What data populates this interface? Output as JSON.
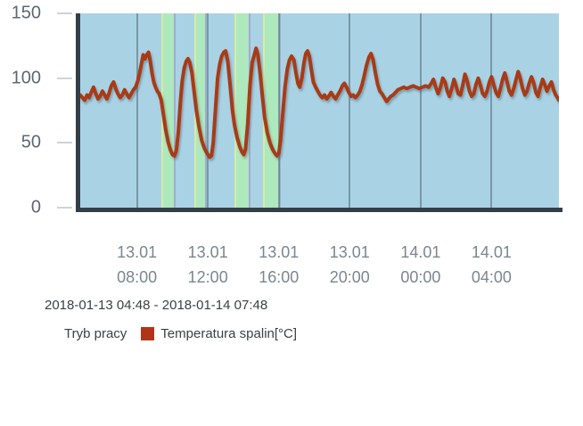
{
  "subtitle": "2018-01-13 04:48 - 2018-01-14 07:48",
  "legend": {
    "items": [
      {
        "label": "Tryb pracy",
        "swatch": null
      },
      {
        "label": "Temperatura spalin[°C]",
        "swatch": "#b23418"
      }
    ]
  },
  "colors": {
    "plot_background": "#a9d3e5",
    "mode_band_green": "#aee8bd",
    "band_edge_left": "#d8eca2",
    "band_edge_right": "#a3abd4",
    "gridline": "rgba(72,94,105,0.5)",
    "axis_bar": "#333e46",
    "tick": "#cdd4d8",
    "y_label_text": "#5d686f",
    "x_label_text": "#7b868e",
    "text_dark": "#3b4043",
    "series_line": "#a83a18"
  },
  "chart_data": {
    "type": "line",
    "title": "",
    "subtitle": "2018-01-13 04:48 - 2018-01-14 07:48",
    "xlabel": "",
    "ylabel": "Temperatura spalin [°C]",
    "x_unit": "hours since 2018-01-13 00:00",
    "xlim_hours": [
      4.8,
      31.8
    ],
    "ylim": [
      0,
      150
    ],
    "grid": "vertical-only",
    "legend_position": "bottom",
    "y_ticks": [
      {
        "value": 0,
        "label": "0"
      },
      {
        "value": 50,
        "label": "50"
      },
      {
        "value": 100,
        "label": "100"
      },
      {
        "value": 150,
        "label": "150"
      }
    ],
    "x_ticks": [
      {
        "hour": 8,
        "date": "13.01",
        "time": "08:00"
      },
      {
        "hour": 12,
        "date": "13.01",
        "time": "12:00"
      },
      {
        "hour": 16,
        "date": "13.01",
        "time": "16:00"
      },
      {
        "hour": 20,
        "date": "13.01",
        "time": "20:00"
      },
      {
        "hour": 24,
        "date": "14.01",
        "time": "00:00"
      },
      {
        "hour": 28,
        "date": "14.01",
        "time": "04:00"
      }
    ],
    "mode_bands": {
      "name": "Tryb pracy",
      "color": "#aee8bd",
      "intervals_hours": [
        [
          9.37,
          10.17
        ],
        [
          11.22,
          11.95
        ],
        [
          13.48,
          14.39
        ],
        [
          15.09,
          16.09
        ]
      ]
    },
    "series": [
      {
        "name": "Temperatura spalin[°C]",
        "color": "#a83a18",
        "unit": "°C",
        "points_hour_value": [
          [
            4.8,
            87
          ],
          [
            4.92,
            85
          ],
          [
            5.05,
            83
          ],
          [
            5.18,
            87
          ],
          [
            5.3,
            85
          ],
          [
            5.42,
            89
          ],
          [
            5.55,
            93
          ],
          [
            5.68,
            88
          ],
          [
            5.8,
            84
          ],
          [
            5.92,
            86
          ],
          [
            6.05,
            90
          ],
          [
            6.18,
            87
          ],
          [
            6.3,
            84
          ],
          [
            6.42,
            88
          ],
          [
            6.55,
            94
          ],
          [
            6.68,
            97
          ],
          [
            6.8,
            92
          ],
          [
            6.92,
            88
          ],
          [
            7.05,
            85
          ],
          [
            7.18,
            87
          ],
          [
            7.3,
            91
          ],
          [
            7.42,
            88
          ],
          [
            7.55,
            85
          ],
          [
            7.68,
            88
          ],
          [
            7.8,
            91
          ],
          [
            7.92,
            93
          ],
          [
            8.05,
            98
          ],
          [
            8.15,
            104
          ],
          [
            8.25,
            111
          ],
          [
            8.35,
            118
          ],
          [
            8.45,
            115
          ],
          [
            8.55,
            118
          ],
          [
            8.65,
            120
          ],
          [
            8.75,
            113
          ],
          [
            8.85,
            104
          ],
          [
            8.95,
            97
          ],
          [
            9.05,
            93
          ],
          [
            9.15,
            90
          ],
          [
            9.25,
            88
          ],
          [
            9.37,
            83
          ],
          [
            9.5,
            71
          ],
          [
            9.62,
            60
          ],
          [
            9.75,
            51
          ],
          [
            9.88,
            45
          ],
          [
            10.0,
            41
          ],
          [
            10.12,
            40
          ],
          [
            10.22,
            44
          ],
          [
            10.33,
            58
          ],
          [
            10.45,
            82
          ],
          [
            10.55,
            98
          ],
          [
            10.67,
            108
          ],
          [
            10.78,
            113
          ],
          [
            10.88,
            115
          ],
          [
            10.98,
            112
          ],
          [
            11.1,
            104
          ],
          [
            11.22,
            90
          ],
          [
            11.35,
            75
          ],
          [
            11.5,
            62
          ],
          [
            11.65,
            52
          ],
          [
            11.8,
            46
          ],
          [
            11.95,
            42
          ],
          [
            12.1,
            39
          ],
          [
            12.2,
            40
          ],
          [
            12.3,
            50
          ],
          [
            12.42,
            75
          ],
          [
            12.55,
            100
          ],
          [
            12.67,
            111
          ],
          [
            12.78,
            117
          ],
          [
            12.9,
            120
          ],
          [
            13.0,
            121
          ],
          [
            13.12,
            113
          ],
          [
            13.25,
            95
          ],
          [
            13.38,
            76
          ],
          [
            13.5,
            64
          ],
          [
            13.65,
            54
          ],
          [
            13.8,
            47
          ],
          [
            13.92,
            43
          ],
          [
            14.02,
            41
          ],
          [
            14.12,
            45
          ],
          [
            14.25,
            65
          ],
          [
            14.38,
            95
          ],
          [
            14.5,
            112
          ],
          [
            14.62,
            118
          ],
          [
            14.72,
            123
          ],
          [
            14.82,
            118
          ],
          [
            14.95,
            103
          ],
          [
            15.08,
            85
          ],
          [
            15.2,
            70
          ],
          [
            15.35,
            58
          ],
          [
            15.5,
            50
          ],
          [
            15.65,
            45
          ],
          [
            15.78,
            42
          ],
          [
            15.9,
            40
          ],
          [
            16.0,
            42
          ],
          [
            16.1,
            52
          ],
          [
            16.22,
            72
          ],
          [
            16.35,
            93
          ],
          [
            16.48,
            107
          ],
          [
            16.6,
            114
          ],
          [
            16.72,
            117
          ],
          [
            16.85,
            114
          ],
          [
            16.97,
            104
          ],
          [
            17.08,
            96
          ],
          [
            17.18,
            93
          ],
          [
            17.3,
            100
          ],
          [
            17.42,
            112
          ],
          [
            17.52,
            119
          ],
          [
            17.62,
            121
          ],
          [
            17.72,
            117
          ],
          [
            17.85,
            105
          ],
          [
            17.95,
            97
          ],
          [
            18.08,
            93
          ],
          [
            18.2,
            90
          ],
          [
            18.32,
            87
          ],
          [
            18.45,
            85
          ],
          [
            18.58,
            87
          ],
          [
            18.7,
            84
          ],
          [
            18.82,
            86
          ],
          [
            18.95,
            89
          ],
          [
            19.08,
            86
          ],
          [
            19.2,
            84
          ],
          [
            19.32,
            87
          ],
          [
            19.45,
            90
          ],
          [
            19.58,
            94
          ],
          [
            19.7,
            96
          ],
          [
            19.82,
            93
          ],
          [
            19.95,
            89
          ],
          [
            20.08,
            86
          ],
          [
            20.2,
            87
          ],
          [
            20.32,
            85
          ],
          [
            20.45,
            87
          ],
          [
            20.58,
            90
          ],
          [
            20.7,
            95
          ],
          [
            20.82,
            102
          ],
          [
            20.95,
            110
          ],
          [
            21.08,
            116
          ],
          [
            21.2,
            119
          ],
          [
            21.32,
            114
          ],
          [
            21.45,
            104
          ],
          [
            21.58,
            95
          ],
          [
            21.7,
            90
          ],
          [
            21.82,
            88
          ],
          [
            21.95,
            85
          ],
          [
            22.08,
            82
          ],
          [
            22.2,
            84
          ],
          [
            22.32,
            86
          ],
          [
            22.45,
            87
          ],
          [
            22.58,
            89
          ],
          [
            22.72,
            91
          ],
          [
            22.88,
            92
          ],
          [
            23.05,
            93
          ],
          [
            23.22,
            92
          ],
          [
            23.4,
            93
          ],
          [
            23.58,
            94
          ],
          [
            23.75,
            93
          ],
          [
            23.92,
            92
          ],
          [
            24.1,
            93
          ],
          [
            24.28,
            94
          ],
          [
            24.45,
            93
          ],
          [
            24.6,
            96
          ],
          [
            24.72,
            99
          ],
          [
            24.85,
            93
          ],
          [
            24.98,
            88
          ],
          [
            25.1,
            92
          ],
          [
            25.25,
            100
          ],
          [
            25.38,
            97
          ],
          [
            25.5,
            90
          ],
          [
            25.62,
            86
          ],
          [
            25.75,
            92
          ],
          [
            25.88,
            99
          ],
          [
            26.0,
            94
          ],
          [
            26.12,
            88
          ],
          [
            26.25,
            87
          ],
          [
            26.38,
            95
          ],
          [
            26.5,
            103
          ],
          [
            26.62,
            98
          ],
          [
            26.75,
            90
          ],
          [
            26.88,
            86
          ],
          [
            27.0,
            88
          ],
          [
            27.12,
            95
          ],
          [
            27.25,
            100
          ],
          [
            27.38,
            94
          ],
          [
            27.5,
            88
          ],
          [
            27.62,
            86
          ],
          [
            27.75,
            90
          ],
          [
            27.88,
            97
          ],
          [
            28.0,
            101
          ],
          [
            28.12,
            95
          ],
          [
            28.25,
            89
          ],
          [
            28.38,
            86
          ],
          [
            28.5,
            92
          ],
          [
            28.62,
            99
          ],
          [
            28.75,
            104
          ],
          [
            28.88,
            97
          ],
          [
            29.0,
            90
          ],
          [
            29.12,
            87
          ],
          [
            29.25,
            92
          ],
          [
            29.38,
            99
          ],
          [
            29.5,
            105
          ],
          [
            29.62,
            100
          ],
          [
            29.75,
            92
          ],
          [
            29.88,
            87
          ],
          [
            30.0,
            90
          ],
          [
            30.12,
            96
          ],
          [
            30.25,
            101
          ],
          [
            30.38,
            96
          ],
          [
            30.5,
            89
          ],
          [
            30.62,
            86
          ],
          [
            30.75,
            93
          ],
          [
            30.88,
            99
          ],
          [
            31.0,
            95
          ],
          [
            31.12,
            90
          ],
          [
            31.25,
            94
          ],
          [
            31.38,
            97
          ],
          [
            31.5,
            91
          ],
          [
            31.62,
            87
          ],
          [
            31.72,
            85
          ],
          [
            31.8,
            83
          ]
        ]
      }
    ]
  }
}
